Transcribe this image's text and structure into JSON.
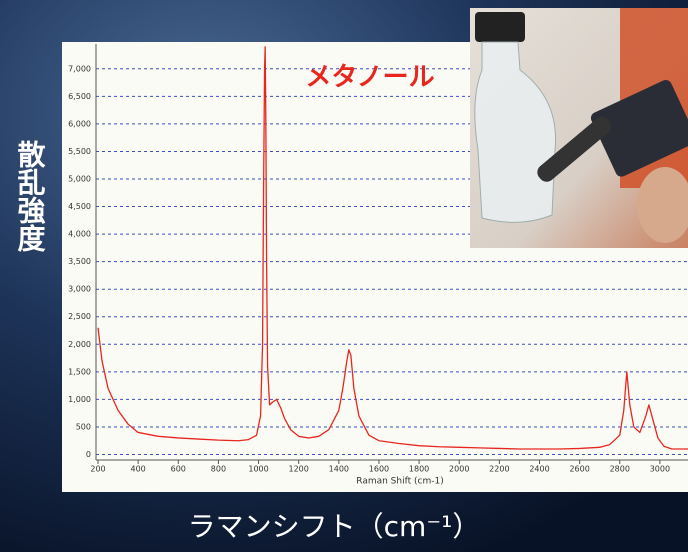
{
  "chart_data": {
    "type": "line",
    "title": "メタノール",
    "y_label": "散乱強度",
    "x_label": "ラマンシフト（cm⁻¹）",
    "inner_x_label": "Raman Shift (cm-1)",
    "color": "#e8261e",
    "grid": true,
    "xlim": [
      190,
      3140
    ],
    "ylim": [
      -100,
      7450
    ],
    "xticks": [
      200,
      400,
      600,
      800,
      1000,
      1200,
      1400,
      1600,
      1800,
      2000,
      2200,
      2400,
      2600,
      2800,
      3000
    ],
    "yticks": [
      0,
      500,
      {
        "value": 1000,
        "label": "1,000"
      },
      {
        "value": 1500,
        "label": "1,500"
      },
      {
        "value": 2000,
        "label": "2,000"
      },
      {
        "value": 2500,
        "label": "2,500"
      },
      {
        "value": 3000,
        "label": "3,000"
      },
      {
        "value": 3500,
        "label": "3,500"
      },
      {
        "value": 4000,
        "label": "4,000"
      },
      {
        "value": 4500,
        "label": "4,500"
      },
      {
        "value": 5000,
        "label": "5,000"
      },
      {
        "value": 5500,
        "label": "5,500"
      },
      {
        "value": 6000,
        "label": "6,000"
      },
      {
        "value": 6500,
        "label": "6,500"
      },
      {
        "value": 7000,
        "label": "7,000"
      }
    ],
    "x": [
      200,
      220,
      250,
      300,
      350,
      400,
      500,
      600,
      700,
      800,
      900,
      950,
      990,
      1010,
      1020,
      1025,
      1030,
      1033,
      1036,
      1040,
      1045,
      1055,
      1070,
      1090,
      1110,
      1130,
      1160,
      1200,
      1250,
      1300,
      1350,
      1400,
      1420,
      1440,
      1450,
      1460,
      1475,
      1500,
      1550,
      1600,
      1700,
      1800,
      1900,
      2000,
      2100,
      2200,
      2300,
      2400,
      2500,
      2600,
      2700,
      2750,
      2800,
      2820,
      2835,
      2850,
      2870,
      2900,
      2930,
      2945,
      2960,
      2990,
      3020,
      3060,
      3100,
      3140
    ],
    "values": [
      2300,
      1700,
      1200,
      800,
      550,
      400,
      330,
      300,
      280,
      260,
      250,
      270,
      350,
      700,
      2000,
      4800,
      7000,
      7400,
      6200,
      3500,
      1600,
      900,
      950,
      1000,
      850,
      650,
      450,
      330,
      300,
      330,
      450,
      800,
      1200,
      1700,
      1900,
      1800,
      1200,
      700,
      350,
      250,
      200,
      160,
      140,
      130,
      120,
      110,
      100,
      100,
      100,
      110,
      130,
      180,
      350,
      800,
      1500,
      900,
      500,
      400,
      700,
      900,
      700,
      300,
      150,
      100,
      100,
      100
    ]
  }
}
